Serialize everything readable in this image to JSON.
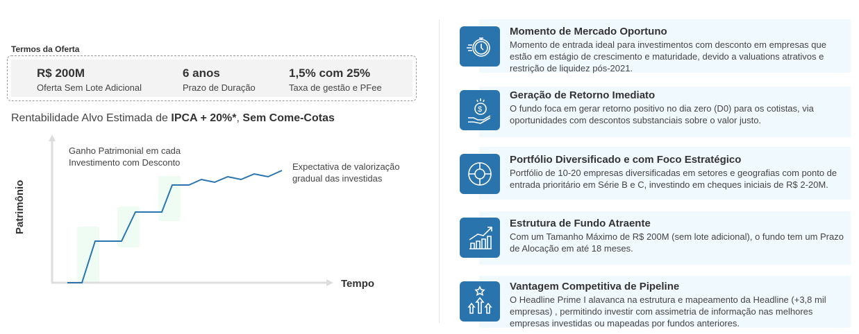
{
  "terms": {
    "label": "Termos da Oferta",
    "items": [
      {
        "value": "R$ 200M",
        "label": "Oferta Sem Lote Adicional"
      },
      {
        "value": "6 anos",
        "label": "Prazo de Duração"
      },
      {
        "value": "1,5% com 25%",
        "label": "Taxa de gestão e PFee"
      }
    ]
  },
  "rentabilidade": {
    "prefix": "Rentabilidade Alvo Estimada de ",
    "bold": "IPCA + 20%*",
    "suffix": ", ",
    "bold2": "Sem Come-Cotas"
  },
  "graph": {
    "ylabel": "Patrimônio",
    "xlabel": "Tempo",
    "annotation1": [
      "Ganho Patrimonial em cada",
      "Investimento com Desconto"
    ],
    "annotation2": [
      "Expectativa de valorização",
      "gradual das investidas"
    ],
    "line_color": "#2a74ae",
    "highlight_color": "#eefcf4"
  },
  "cards": [
    {
      "icon": "stopwatch-icon",
      "title": "Momento de Mercado Oportuno",
      "text": "Momento de entrada ideal para investimentos com desconto em empresas que estão em estágio de crescimento e maturidade, devido a valuations atrativos e restrição de liquidez pós-2021."
    },
    {
      "icon": "hand-coin-icon",
      "title": "Geração de Retorno Imediato",
      "text": "O fundo foca em gerar retorno positivo no dia zero (D0) para os cotistas, via oportunidades com descontos substanciais sobre o valor justo."
    },
    {
      "icon": "pie-coin-icon",
      "title": "Portfólio Diversificado e com Foco Estratégico",
      "text": "Portfólio de 10-20 empresas diversificadas em setores e geografias com ponto de entrada prioritário em Série B e C, investindo em cheques iniciais de R$ 2-20M."
    },
    {
      "icon": "growth-chart-icon",
      "title": "Estrutura de Fundo Atraente",
      "text": "Com um Tamanho Máximo de R$ 200M (sem lote adicional), o fundo tem um Prazo de Alocação em até 18 meses."
    },
    {
      "icon": "arrows-up-star-icon",
      "title": "Vantagem Competitiva de Pipeline",
      "text": "O Headline Prime I alavanca na estrutura e mapeamento da Headline (+3,8 mil empresas) , permitindo investir com assimetria de informação nas melhores empresas investidas ou mapeadas por fundos anteriores."
    }
  ]
}
